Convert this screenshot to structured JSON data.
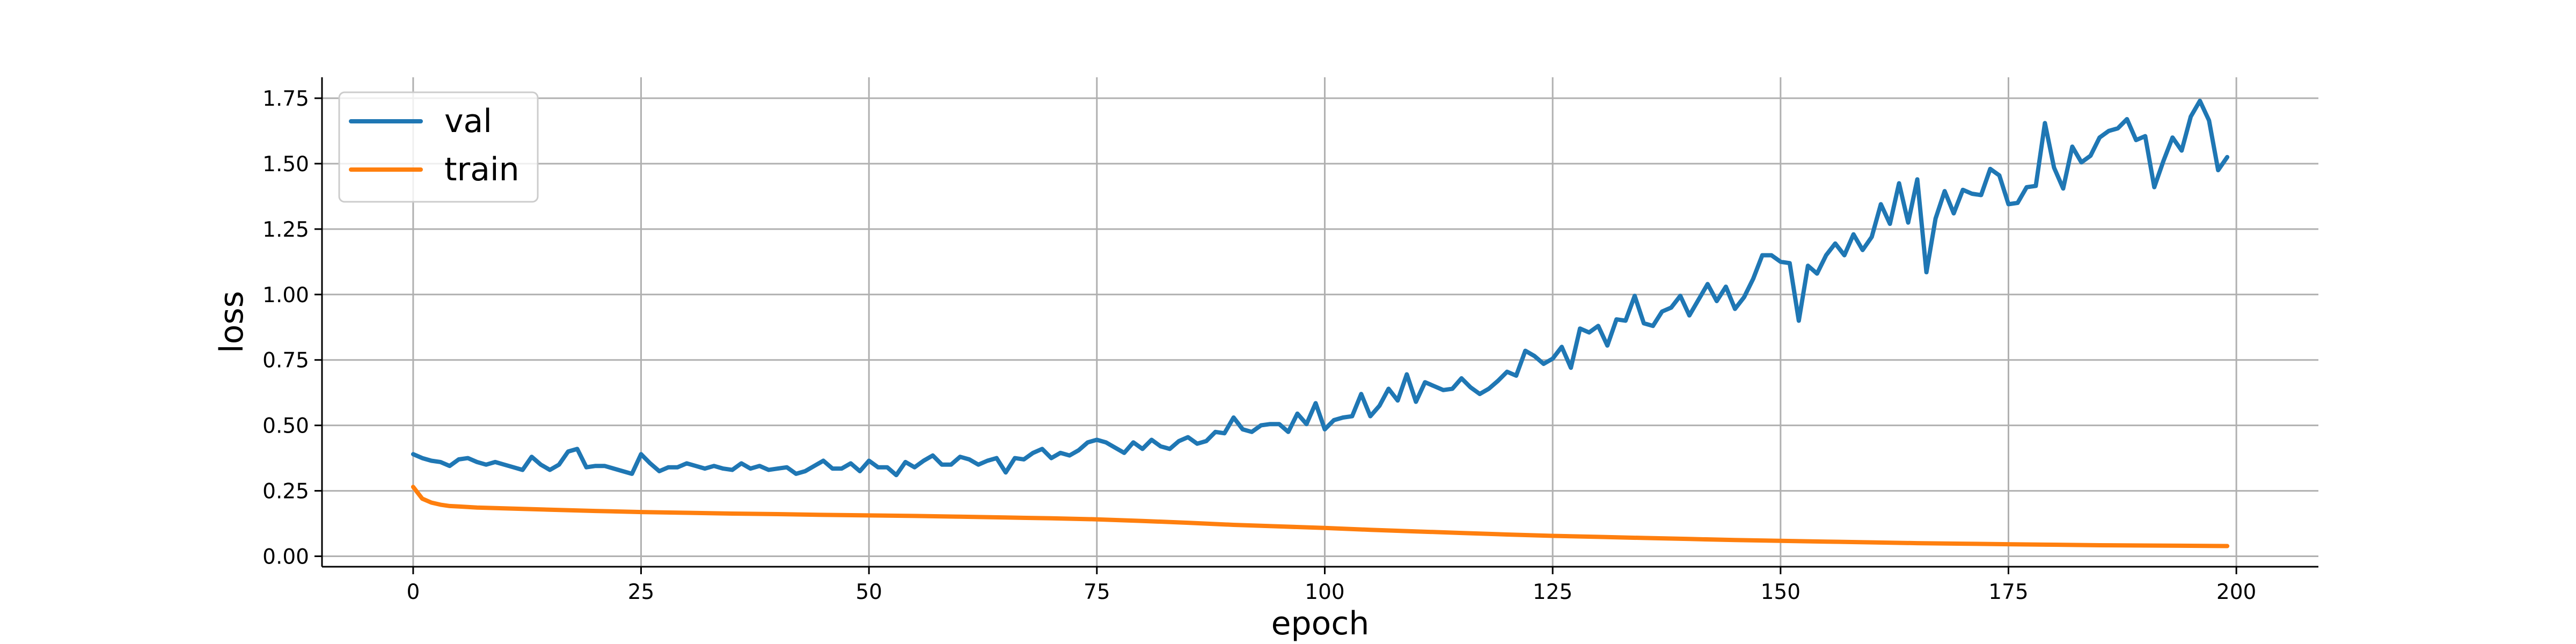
{
  "chart_data": {
    "type": "line",
    "xlabel": "epoch",
    "ylabel": "loss",
    "xlim": [
      -10,
      209
    ],
    "ylim": [
      -0.04,
      1.83
    ],
    "xticks": [
      0,
      25,
      50,
      75,
      100,
      125,
      150,
      175,
      200
    ],
    "yticks": [
      0.0,
      0.25,
      0.5,
      0.75,
      1.0,
      1.25,
      1.5,
      1.75
    ],
    "xtick_labels": [
      "0",
      "25",
      "50",
      "75",
      "100",
      "125",
      "150",
      "175",
      "200"
    ],
    "ytick_labels": [
      "0.00",
      "0.25",
      "0.50",
      "0.75",
      "1.00",
      "1.25",
      "1.50",
      "1.75"
    ],
    "grid": true,
    "legend_position": "top-left",
    "legend": [
      "val",
      "train"
    ],
    "series": [
      {
        "name": "val",
        "color": "#1f77b4",
        "points": [
          [
            0,
            0.39
          ],
          [
            1,
            0.375
          ],
          [
            2,
            0.365
          ],
          [
            3,
            0.36
          ],
          [
            4,
            0.345
          ],
          [
            5,
            0.37
          ],
          [
            6,
            0.375
          ],
          [
            7,
            0.36
          ],
          [
            8,
            0.35
          ],
          [
            9,
            0.36
          ],
          [
            10,
            0.35
          ],
          [
            11,
            0.34
          ],
          [
            12,
            0.33
          ],
          [
            13,
            0.38
          ],
          [
            14,
            0.35
          ],
          [
            15,
            0.33
          ],
          [
            16,
            0.35
          ],
          [
            17,
            0.4
          ],
          [
            18,
            0.41
          ],
          [
            19,
            0.34
          ],
          [
            20,
            0.345
          ],
          [
            21,
            0.345
          ],
          [
            22,
            0.335
          ],
          [
            23,
            0.325
          ],
          [
            24,
            0.315
          ],
          [
            25,
            0.39
          ],
          [
            26,
            0.355
          ],
          [
            27,
            0.325
          ],
          [
            28,
            0.34
          ],
          [
            29,
            0.34
          ],
          [
            30,
            0.355
          ],
          [
            31,
            0.345
          ],
          [
            32,
            0.335
          ],
          [
            33,
            0.345
          ],
          [
            34,
            0.335
          ],
          [
            35,
            0.33
          ],
          [
            36,
            0.355
          ],
          [
            37,
            0.335
          ],
          [
            38,
            0.345
          ],
          [
            39,
            0.33
          ],
          [
            40,
            0.335
          ],
          [
            41,
            0.34
          ],
          [
            42,
            0.315
          ],
          [
            43,
            0.325
          ],
          [
            44,
            0.345
          ],
          [
            45,
            0.365
          ],
          [
            46,
            0.335
          ],
          [
            47,
            0.335
          ],
          [
            48,
            0.355
          ],
          [
            49,
            0.325
          ],
          [
            50,
            0.365
          ],
          [
            51,
            0.34
          ],
          [
            52,
            0.34
          ],
          [
            53,
            0.31
          ],
          [
            54,
            0.36
          ],
          [
            55,
            0.34
          ],
          [
            56,
            0.365
          ],
          [
            57,
            0.385
          ],
          [
            58,
            0.35
          ],
          [
            59,
            0.35
          ],
          [
            60,
            0.38
          ],
          [
            61,
            0.37
          ],
          [
            62,
            0.35
          ],
          [
            63,
            0.365
          ],
          [
            64,
            0.375
          ],
          [
            65,
            0.32
          ],
          [
            66,
            0.375
          ],
          [
            67,
            0.37
          ],
          [
            68,
            0.395
          ],
          [
            69,
            0.41
          ],
          [
            70,
            0.375
          ],
          [
            71,
            0.395
          ],
          [
            72,
            0.385
          ],
          [
            73,
            0.405
          ],
          [
            74,
            0.435
          ],
          [
            75,
            0.445
          ],
          [
            76,
            0.435
          ],
          [
            77,
            0.415
          ],
          [
            78,
            0.395
          ],
          [
            79,
            0.435
          ],
          [
            80,
            0.41
          ],
          [
            81,
            0.445
          ],
          [
            82,
            0.42
          ],
          [
            83,
            0.41
          ],
          [
            84,
            0.44
          ],
          [
            85,
            0.455
          ],
          [
            86,
            0.43
          ],
          [
            87,
            0.44
          ],
          [
            88,
            0.475
          ],
          [
            89,
            0.47
          ],
          [
            90,
            0.53
          ],
          [
            91,
            0.485
          ],
          [
            92,
            0.475
          ],
          [
            93,
            0.5
          ],
          [
            94,
            0.505
          ],
          [
            95,
            0.505
          ],
          [
            96,
            0.475
          ],
          [
            97,
            0.545
          ],
          [
            98,
            0.505
          ],
          [
            99,
            0.585
          ],
          [
            100,
            0.485
          ],
          [
            101,
            0.52
          ],
          [
            102,
            0.53
          ],
          [
            103,
            0.535
          ],
          [
            104,
            0.62
          ],
          [
            105,
            0.535
          ],
          [
            106,
            0.575
          ],
          [
            107,
            0.64
          ],
          [
            108,
            0.595
          ],
          [
            109,
            0.695
          ],
          [
            110,
            0.59
          ],
          [
            111,
            0.665
          ],
          [
            112,
            0.65
          ],
          [
            113,
            0.635
          ],
          [
            114,
            0.64
          ],
          [
            115,
            0.68
          ],
          [
            116,
            0.645
          ],
          [
            117,
            0.62
          ],
          [
            118,
            0.64
          ],
          [
            119,
            0.67
          ],
          [
            120,
            0.705
          ],
          [
            121,
            0.69
          ],
          [
            122,
            0.785
          ],
          [
            123,
            0.765
          ],
          [
            124,
            0.735
          ],
          [
            125,
            0.755
          ],
          [
            126,
            0.8
          ],
          [
            127,
            0.72
          ],
          [
            128,
            0.87
          ],
          [
            129,
            0.855
          ],
          [
            130,
            0.88
          ],
          [
            131,
            0.805
          ],
          [
            132,
            0.905
          ],
          [
            133,
            0.9
          ],
          [
            134,
            0.995
          ],
          [
            135,
            0.89
          ],
          [
            136,
            0.88
          ],
          [
            137,
            0.935
          ],
          [
            138,
            0.95
          ],
          [
            139,
            0.995
          ],
          [
            140,
            0.92
          ],
          [
            141,
            0.98
          ],
          [
            142,
            1.04
          ],
          [
            143,
            0.975
          ],
          [
            144,
            1.03
          ],
          [
            145,
            0.945
          ],
          [
            146,
            0.99
          ],
          [
            147,
            1.06
          ],
          [
            148,
            1.15
          ],
          [
            149,
            1.15
          ],
          [
            150,
            1.125
          ],
          [
            151,
            1.12
          ],
          [
            152,
            0.9
          ],
          [
            153,
            1.11
          ],
          [
            154,
            1.08
          ],
          [
            155,
            1.15
          ],
          [
            156,
            1.195
          ],
          [
            157,
            1.15
          ],
          [
            158,
            1.23
          ],
          [
            159,
            1.17
          ],
          [
            160,
            1.22
          ],
          [
            161,
            1.345
          ],
          [
            162,
            1.27
          ],
          [
            163,
            1.425
          ],
          [
            164,
            1.275
          ],
          [
            165,
            1.44
          ],
          [
            166,
            1.085
          ],
          [
            167,
            1.29
          ],
          [
            168,
            1.395
          ],
          [
            169,
            1.31
          ],
          [
            170,
            1.4
          ],
          [
            171,
            1.385
          ],
          [
            172,
            1.38
          ],
          [
            173,
            1.48
          ],
          [
            174,
            1.455
          ],
          [
            175,
            1.345
          ],
          [
            176,
            1.35
          ],
          [
            177,
            1.41
          ],
          [
            178,
            1.415
          ],
          [
            179,
            1.655
          ],
          [
            180,
            1.485
          ],
          [
            181,
            1.405
          ],
          [
            182,
            1.565
          ],
          [
            183,
            1.505
          ],
          [
            184,
            1.53
          ],
          [
            185,
            1.6
          ],
          [
            186,
            1.625
          ],
          [
            187,
            1.635
          ],
          [
            188,
            1.67
          ],
          [
            189,
            1.59
          ],
          [
            190,
            1.605
          ],
          [
            191,
            1.41
          ],
          [
            192,
            1.51
          ],
          [
            193,
            1.6
          ],
          [
            194,
            1.55
          ],
          [
            195,
            1.68
          ],
          [
            196,
            1.74
          ],
          [
            197,
            1.665
          ],
          [
            198,
            1.475
          ],
          [
            199,
            1.525
          ]
        ]
      },
      {
        "name": "train",
        "color": "#ff7f0e",
        "points": [
          [
            0,
            0.265
          ],
          [
            1,
            0.22
          ],
          [
            2,
            0.205
          ],
          [
            3,
            0.197
          ],
          [
            4,
            0.192
          ],
          [
            5,
            0.19
          ],
          [
            6,
            0.188
          ],
          [
            7,
            0.186
          ],
          [
            8,
            0.185
          ],
          [
            9,
            0.184
          ],
          [
            10,
            0.183
          ],
          [
            15,
            0.178
          ],
          [
            20,
            0.173
          ],
          [
            25,
            0.169
          ],
          [
            30,
            0.166
          ],
          [
            35,
            0.163
          ],
          [
            40,
            0.161
          ],
          [
            45,
            0.158
          ],
          [
            50,
            0.156
          ],
          [
            55,
            0.154
          ],
          [
            60,
            0.151
          ],
          [
            65,
            0.148
          ],
          [
            70,
            0.145
          ],
          [
            75,
            0.141
          ],
          [
            80,
            0.135
          ],
          [
            85,
            0.128
          ],
          [
            90,
            0.12
          ],
          [
            95,
            0.114
          ],
          [
            100,
            0.108
          ],
          [
            105,
            0.101
          ],
          [
            110,
            0.095
          ],
          [
            115,
            0.089
          ],
          [
            120,
            0.083
          ],
          [
            125,
            0.078
          ],
          [
            130,
            0.074
          ],
          [
            135,
            0.07
          ],
          [
            140,
            0.066
          ],
          [
            145,
            0.062
          ],
          [
            150,
            0.059
          ],
          [
            155,
            0.056
          ],
          [
            160,
            0.053
          ],
          [
            165,
            0.05
          ],
          [
            170,
            0.048
          ],
          [
            175,
            0.046
          ],
          [
            180,
            0.044
          ],
          [
            185,
            0.042
          ],
          [
            190,
            0.041
          ],
          [
            195,
            0.04
          ],
          [
            199,
            0.039
          ]
        ]
      }
    ]
  }
}
